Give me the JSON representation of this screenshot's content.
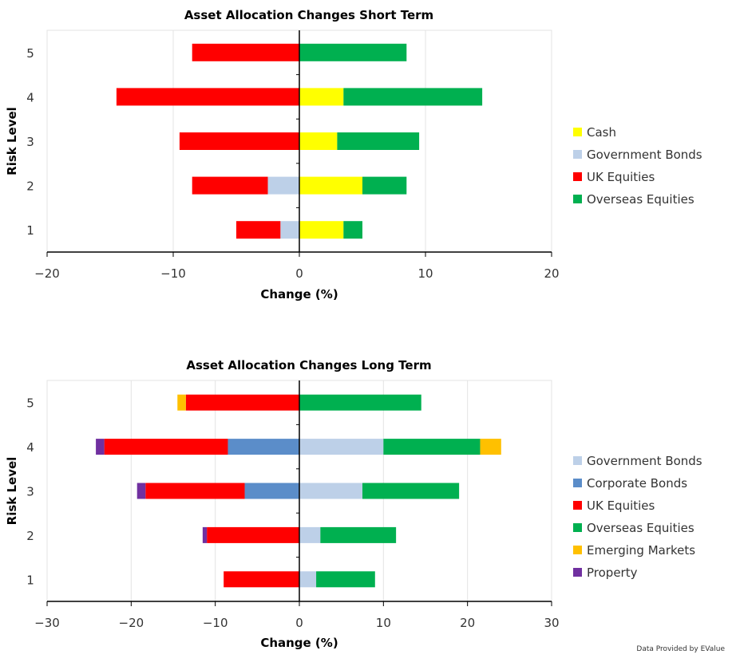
{
  "chart_data": [
    {
      "type": "bar",
      "orientation": "horizontal",
      "stacked": true,
      "title": "Asset Allocation Changes Short Term",
      "xlabel": "Change (%)",
      "ylabel": "Risk Level",
      "categories": [
        "1",
        "2",
        "3",
        "4",
        "5"
      ],
      "xlim": [
        -20,
        20
      ],
      "xticks": [
        -20,
        -10,
        0,
        10,
        20
      ],
      "legend": "right",
      "grid": "vertical",
      "series": [
        {
          "name": "Cash",
          "color": "#ffff00",
          "values": [
            3.5,
            5,
            3,
            3.5,
            0
          ]
        },
        {
          "name": "Government Bonds",
          "color": "#bdd0e8",
          "values": [
            -1.5,
            -2.5,
            0,
            0,
            0
          ]
        },
        {
          "name": "UK Equities",
          "color": "#ff0000",
          "values": [
            -3.5,
            -6,
            -9.5,
            -14.5,
            -8.5
          ]
        },
        {
          "name": "Overseas Equities",
          "color": "#00b050",
          "values": [
            1.5,
            3.5,
            6.5,
            11,
            8.5
          ]
        }
      ]
    },
    {
      "type": "bar",
      "orientation": "horizontal",
      "stacked": true,
      "title": "Asset Allocation Changes Long Term",
      "xlabel": "Change (%)",
      "ylabel": "Risk Level",
      "categories": [
        "1",
        "2",
        "3",
        "4",
        "5"
      ],
      "xlim": [
        -30,
        30
      ],
      "xticks": [
        -30,
        -20,
        -10,
        0,
        10,
        20,
        30
      ],
      "legend": "right",
      "grid": "vertical",
      "series": [
        {
          "name": "Government Bonds",
          "color": "#bdd0e8",
          "values": [
            2,
            2.5,
            7.5,
            10,
            0
          ]
        },
        {
          "name": "Corporate Bonds",
          "color": "#5b8dc9",
          "values": [
            0,
            0,
            -6.5,
            -8.5,
            0
          ]
        },
        {
          "name": "UK Equities",
          "color": "#ff0000",
          "values": [
            -9,
            -11,
            -11.8,
            -14.7,
            -13.5
          ]
        },
        {
          "name": "Overseas Equities",
          "color": "#00b050",
          "values": [
            7,
            9,
            11.5,
            11.5,
            14.5
          ]
        },
        {
          "name": "Emerging Markets",
          "color": "#ffc000",
          "values": [
            0,
            0,
            0,
            2.5,
            -1
          ]
        },
        {
          "name": "Property",
          "color": "#7030a0",
          "values": [
            0,
            -0.5,
            -1,
            -1,
            0
          ]
        }
      ]
    }
  ],
  "credit": "Data Provided by EValue"
}
